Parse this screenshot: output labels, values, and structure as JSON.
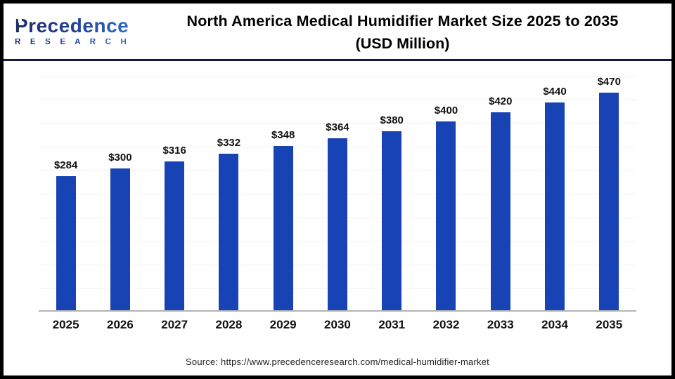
{
  "logo": {
    "brand": "Precedence",
    "sub": "R E S E A R C H"
  },
  "header": {
    "title_line1": "North America Medical Humidifier Market Size 2025 to 2035",
    "title_line2": "(USD Million)"
  },
  "footer": {
    "source": "Source: https://www.precedenceresearch.com/medical-humidifier-market"
  },
  "colors": {
    "bar": "#1843b5",
    "separator": "#161b45",
    "grid": "#f1f1f1",
    "axis": "#b3b3b3"
  },
  "chart_data": {
    "type": "bar",
    "title": "North America Medical Humidifier Market Size 2025 to 2035 (USD Million)",
    "categories": [
      "2025",
      "2026",
      "2027",
      "2028",
      "2029",
      "2030",
      "2031",
      "2032",
      "2033",
      "2034",
      "2035"
    ],
    "values": [
      284,
      300,
      316,
      332,
      348,
      364,
      380,
      400,
      420,
      440,
      470
    ],
    "labels": [
      "$284",
      "$300",
      "$316",
      "$332",
      "$348",
      "$364",
      "$380",
      "$400",
      "$420",
      "$440",
      "$470"
    ],
    "xlabel": "",
    "ylabel": "",
    "ylim": [
      0,
      500
    ],
    "grid": true,
    "grid_interval": 50,
    "legend": false,
    "bar_color": "#1843b5"
  }
}
